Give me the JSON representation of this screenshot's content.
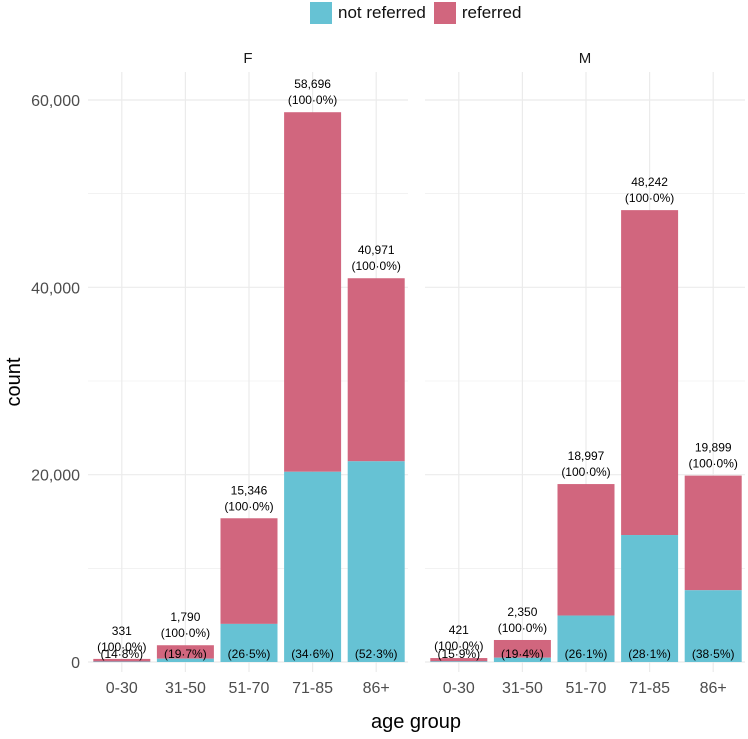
{
  "legend": {
    "not_referred": "not referred",
    "referred": "referred"
  },
  "colors": {
    "not_referred": "#66c2d4",
    "referred": "#d1667e",
    "grid": "#ebebeb",
    "text": "#4d4d4d"
  },
  "chart_data": {
    "type": "bar",
    "stacked": true,
    "facets": [
      "F",
      "M"
    ],
    "categories": [
      "0-30",
      "31-50",
      "51-70",
      "71-85",
      "86+"
    ],
    "xlabel": "age group",
    "ylabel": "count",
    "ylim": [
      0,
      60000
    ],
    "yticks": [
      0,
      20000,
      40000,
      60000
    ],
    "ytick_labels": [
      "0",
      "20,000",
      "40,000",
      "60,000"
    ],
    "legend_position": "top",
    "panels": [
      {
        "facet": "F",
        "totals": [
          331,
          1790,
          15346,
          58696,
          40971
        ],
        "total_labels": [
          "331",
          "1,790",
          "15,346",
          "58,696",
          "40,971"
        ],
        "pct_labels": [
          "(100·0%)",
          "(100·0%)",
          "(100·0%)",
          "(100·0%)",
          "(100·0%)"
        ],
        "not_referred": [
          49,
          353,
          4067,
          20309,
          21428
        ],
        "not_referred_labels": [
          "(14·8%)",
          "(19·7%)",
          "(26·5%)",
          "(34·6%)",
          "(52·3%)"
        ]
      },
      {
        "facet": "M",
        "totals": [
          421,
          2350,
          18997,
          48242,
          19899
        ],
        "total_labels": [
          "421",
          "2,350",
          "18,997",
          "48,242",
          "19,899"
        ],
        "pct_labels": [
          "(100·0%)",
          "(100·0%)",
          "(100·0%)",
          "(100·0%)",
          "(100·0%)"
        ],
        "not_referred": [
          67,
          456,
          4958,
          13556,
          7661
        ],
        "not_referred_labels": [
          "(15·9%)",
          "(19·4%)",
          "(26·1%)",
          "(28·1%)",
          "(38·5%)"
        ]
      }
    ]
  }
}
